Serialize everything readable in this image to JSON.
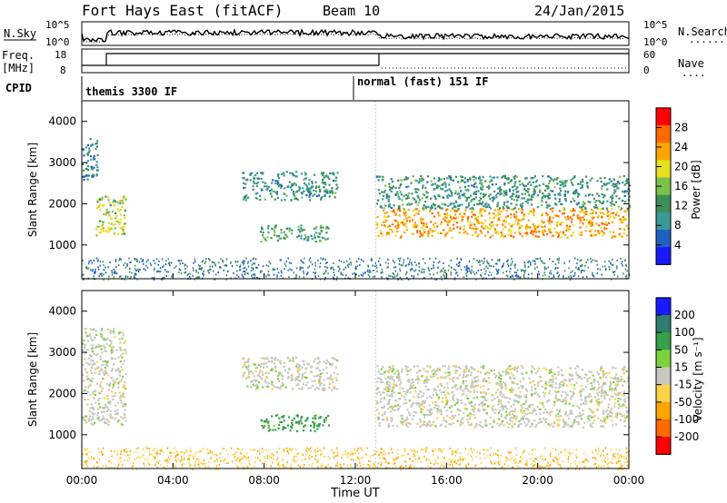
{
  "header": {
    "station": "Fort Hays East (fitACF)",
    "beam": "Beam 10",
    "date": "24/Jan/2015"
  },
  "panels": {
    "nsky": {
      "left_label": "N.Sky",
      "left_ticks": [
        "10^5",
        "10^0"
      ],
      "right_label": "N.Search",
      "right_ticks": [
        "10^5",
        "10^0"
      ],
      "right_legend": "........"
    },
    "freq": {
      "left_label_1": "Freq.",
      "left_label_2": "[MHz]",
      "left_ticks": [
        "18",
        "8"
      ],
      "right_ticks": [
        "60",
        "0"
      ],
      "right_label": "Nave",
      "right_legend": "...."
    },
    "cpid": {
      "label": "CPID",
      "modes": [
        {
          "name": "themis 3300 IF",
          "start_hour": 0.0,
          "end_hour": 12.9
        },
        {
          "name": "normal (fast) 151 IF",
          "start_hour": 12.9,
          "end_hour": 24.0
        }
      ]
    }
  },
  "chart_data": [
    {
      "type": "heatmap",
      "title": "",
      "ylabel": "Slant Range [km]",
      "xlabel": "",
      "ylim": [
        180,
        4500
      ],
      "yticks": [
        "1000",
        "2000",
        "3000",
        "4000"
      ],
      "colorbar_label": "Power [dB]",
      "colorbar_ticks": [
        "4",
        "8",
        "12",
        "16",
        "20",
        "24",
        "28"
      ],
      "colorscale": [
        "#1a1aff",
        "#2060c0",
        "#3a9a9a",
        "#3d8f5a",
        "#7cc24a",
        "#e6e01e",
        "#ffa500",
        "#ff6a00",
        "#ff0000"
      ],
      "echo_regions": [
        {
          "start_hour": 0.0,
          "end_hour": 0.7,
          "range_min": 2600,
          "range_max": 3600,
          "power": 8
        },
        {
          "start_hour": 0.6,
          "end_hour": 1.9,
          "range_min": 1250,
          "range_max": 2200,
          "power": 18
        },
        {
          "start_hour": 7.0,
          "end_hour": 11.2,
          "range_min": 2100,
          "range_max": 2800,
          "power": 10
        },
        {
          "start_hour": 7.8,
          "end_hour": 10.8,
          "range_min": 1100,
          "range_max": 1500,
          "power": 12
        },
        {
          "start_hour": 12.9,
          "end_hour": 24.0,
          "range_min": 1200,
          "range_max": 1900,
          "power": 24
        },
        {
          "start_hour": 12.9,
          "end_hour": 24.0,
          "range_min": 1900,
          "range_max": 2700,
          "power": 10
        }
      ]
    },
    {
      "type": "heatmap",
      "title": "",
      "ylabel": "Slant Range [km]",
      "xlabel": "Time UT",
      "ylim": [
        180,
        4500
      ],
      "yticks": [
        "1000",
        "2000",
        "3000",
        "4000"
      ],
      "xticks": [
        "00:00",
        "04:00",
        "08:00",
        "12:00",
        "16:00",
        "20:00",
        "00:00"
      ],
      "colorbar_label": "Velocity [m s⁻¹]",
      "colorbar_ticks": [
        "200",
        "100",
        "50",
        "15",
        "-15",
        "-50",
        "-100",
        "-200"
      ],
      "colorscale": [
        "#1a1aff",
        "#2e7d6e",
        "#36a04a",
        "#7cd23a",
        "#c8c8c0",
        "#ffd24a",
        "#ffa500",
        "#ff6a00",
        "#ff0000"
      ],
      "echo_regions": [
        {
          "start_hour": 0.0,
          "end_hour": 1.9,
          "range_min": 1250,
          "range_max": 3600,
          "velocity": 0
        },
        {
          "start_hour": 7.0,
          "end_hour": 11.2,
          "range_min": 2100,
          "range_max": 2900,
          "velocity": 0
        },
        {
          "start_hour": 7.8,
          "end_hour": 10.8,
          "range_min": 1100,
          "range_max": 1500,
          "velocity": 45
        },
        {
          "start_hour": 12.9,
          "end_hour": 24.0,
          "range_min": 1200,
          "range_max": 2700,
          "velocity": 0
        }
      ]
    }
  ],
  "colors": {
    "ground_scatter": "#b4b4b4",
    "axis": "#000000"
  }
}
